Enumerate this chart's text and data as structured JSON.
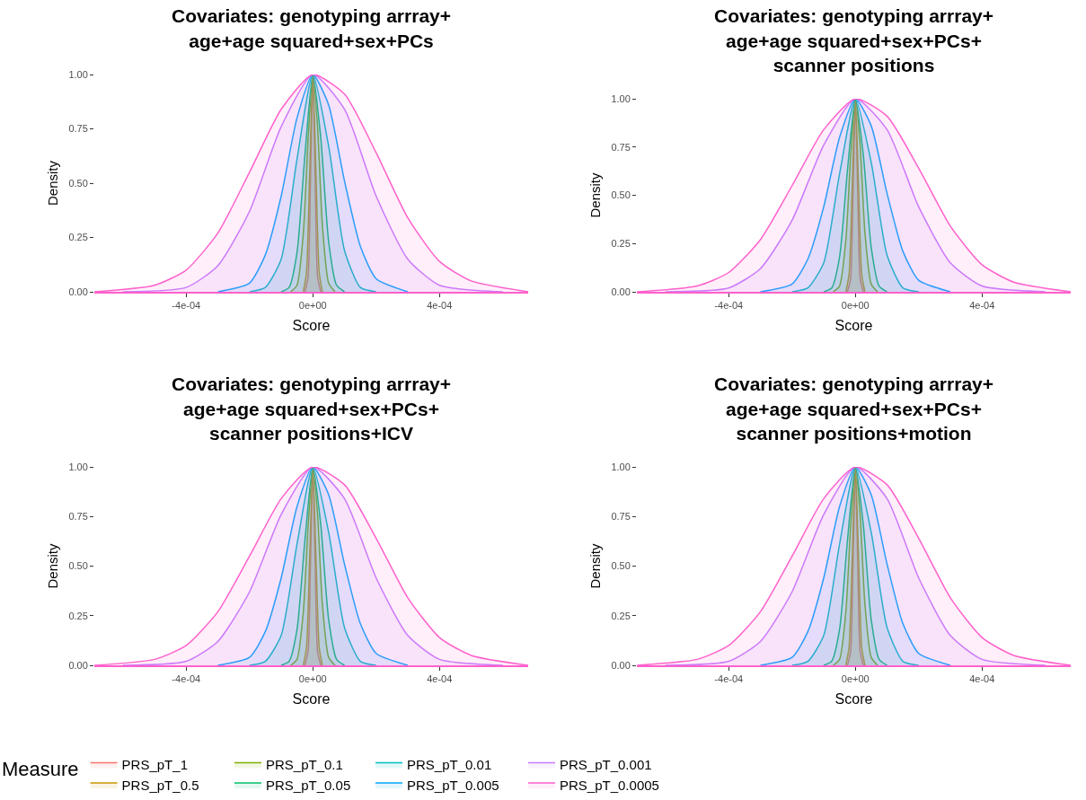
{
  "chart_data": [
    {
      "type": "area",
      "title": "Covariates: genotyping arrray+\nage+age squared+sex+PCs",
      "xlabel": "Score",
      "ylabel": "Density",
      "xlim": [
        -0.00069,
        0.00068
      ],
      "xticks": [
        {
          "value": -0.0004,
          "label": "-4e-04"
        },
        {
          "value": 0,
          "label": "0e+00"
        },
        {
          "value": 0.0004,
          "label": "4e-04"
        }
      ],
      "ylim": [
        0,
        1
      ],
      "yticks": [
        {
          "value": 0,
          "label": "0.00"
        },
        {
          "value": 0.25,
          "label": "0.25"
        },
        {
          "value": 0.5,
          "label": "0.50"
        },
        {
          "value": 0.75,
          "label": "0.75"
        },
        {
          "value": 1,
          "label": "1.00"
        }
      ],
      "series": [
        {
          "color": "#F8766D",
          "x": [
            -2.5e-05,
            -1.5e-05,
            -7.5e-06,
            0,
            7.5e-06,
            1.5e-05,
            2.5e-05
          ],
          "values": [
            0,
            0.07,
            0.51,
            1,
            0.51,
            0.07,
            0
          ]
        },
        {
          "color": "#CD9600",
          "x": [
            -3e-05,
            -2e-05,
            -1e-05,
            0,
            1e-05,
            2e-05,
            3e-05
          ],
          "values": [
            0,
            0.09,
            0.54,
            1,
            0.54,
            0.09,
            0
          ]
        },
        {
          "color": "#7CAE00",
          "x": [
            -7e-05,
            -5e-05,
            -3e-05,
            -1.5e-05,
            0,
            1.5e-05,
            3e-05,
            5e-05,
            7e-05
          ],
          "values": [
            0,
            0.03,
            0.27,
            0.7,
            1,
            0.76,
            0.31,
            0.04,
            0
          ]
        },
        {
          "color": "#00BE67",
          "x": [
            -0.0001,
            -7.5e-05,
            -5e-05,
            -2.5e-05,
            0,
            2.5e-05,
            5e-05,
            7.5e-05,
            0.0001
          ],
          "values": [
            0,
            0.02,
            0.18,
            0.63,
            1,
            0.71,
            0.23,
            0.03,
            0
          ]
        },
        {
          "color": "#00BFC4",
          "x": [
            -0.0002,
            -0.00015,
            -0.0001,
            -5e-05,
            0,
            5e-05,
            0.0001,
            0.00015,
            0.0002
          ],
          "values": [
            0,
            0.02,
            0.15,
            0.61,
            1,
            0.67,
            0.19,
            0.02,
            0
          ]
        },
        {
          "color": "#00A9FF",
          "x": [
            -0.0003,
            -0.0002,
            -0.00015,
            -0.0001,
            -5e-05,
            0,
            5e-05,
            0.0001,
            0.00015,
            0.0002,
            0.0003
          ],
          "values": [
            0,
            0.04,
            0.17,
            0.44,
            0.8,
            1,
            0.86,
            0.51,
            0.21,
            0.06,
            0
          ]
        },
        {
          "color": "#C77CFF",
          "x": [
            -0.0006,
            -0.0004,
            -0.0003,
            -0.0002,
            -0.0001,
            0,
            0.0001,
            0.0002,
            0.0003,
            0.0004,
            0.0006
          ],
          "values": [
            0,
            0.02,
            0.12,
            0.37,
            0.76,
            1,
            0.84,
            0.44,
            0.15,
            0.03,
            0
          ]
        },
        {
          "color": "#FF61CC",
          "x": [
            -0.00069,
            -0.0005,
            -0.0004,
            -0.0003,
            -0.0002,
            -0.0001,
            0,
            0.0001,
            0.0002,
            0.0003,
            0.0004,
            0.0005,
            0.00068
          ],
          "values": [
            0,
            0.03,
            0.1,
            0.27,
            0.55,
            0.84,
            1,
            0.91,
            0.64,
            0.34,
            0.14,
            0.05,
            0
          ]
        }
      ]
    },
    {
      "type": "area",
      "title": "Covariates: genotyping arrray+\nage+age squared+sex+PCs+\nscanner positions",
      "xlabel": "Score",
      "ylabel": "Density",
      "xlim": [
        -0.00069,
        0.00068
      ],
      "xticks": [
        {
          "value": -0.0004,
          "label": "-4e-04"
        },
        {
          "value": 0,
          "label": "0e+00"
        },
        {
          "value": 0.0004,
          "label": "4e-04"
        }
      ],
      "ylim": [
        0,
        1
      ],
      "yticks": [
        {
          "value": 0,
          "label": "0.00"
        },
        {
          "value": 0.25,
          "label": "0.25"
        },
        {
          "value": 0.5,
          "label": "0.50"
        },
        {
          "value": 0.75,
          "label": "0.75"
        },
        {
          "value": 1,
          "label": "1.00"
        }
      ],
      "series": [
        {
          "color": "#F8766D",
          "x": [
            -2.5e-05,
            -1.5e-05,
            -7.5e-06,
            0,
            7.5e-06,
            1.5e-05,
            2.5e-05
          ],
          "values": [
            0,
            0.07,
            0.51,
            1,
            0.51,
            0.07,
            0
          ]
        },
        {
          "color": "#CD9600",
          "x": [
            -3e-05,
            -2e-05,
            -1e-05,
            0,
            1e-05,
            2e-05,
            3e-05
          ],
          "values": [
            0,
            0.09,
            0.54,
            1,
            0.54,
            0.09,
            0
          ]
        },
        {
          "color": "#7CAE00",
          "x": [
            -7e-05,
            -5e-05,
            -3e-05,
            -1.5e-05,
            0,
            1.5e-05,
            3e-05,
            5e-05,
            7e-05
          ],
          "values": [
            0,
            0.03,
            0.27,
            0.7,
            1,
            0.76,
            0.31,
            0.04,
            0
          ]
        },
        {
          "color": "#00BE67",
          "x": [
            -0.0001,
            -7.5e-05,
            -5e-05,
            -2.5e-05,
            0,
            2.5e-05,
            5e-05,
            7.5e-05,
            0.0001
          ],
          "values": [
            0,
            0.02,
            0.18,
            0.63,
            1,
            0.71,
            0.23,
            0.03,
            0
          ]
        },
        {
          "color": "#00BFC4",
          "x": [
            -0.0002,
            -0.00015,
            -0.0001,
            -5e-05,
            0,
            5e-05,
            0.0001,
            0.00015,
            0.0002
          ],
          "values": [
            0,
            0.02,
            0.15,
            0.61,
            1,
            0.67,
            0.19,
            0.02,
            0
          ]
        },
        {
          "color": "#00A9FF",
          "x": [
            -0.0003,
            -0.0002,
            -0.00015,
            -0.0001,
            -5e-05,
            0,
            5e-05,
            0.0001,
            0.00015,
            0.0002,
            0.0003
          ],
          "values": [
            0,
            0.04,
            0.17,
            0.44,
            0.8,
            1,
            0.86,
            0.51,
            0.21,
            0.06,
            0
          ]
        },
        {
          "color": "#C77CFF",
          "x": [
            -0.0006,
            -0.0004,
            -0.0003,
            -0.0002,
            -0.0001,
            0,
            0.0001,
            0.0002,
            0.0003,
            0.0004,
            0.0006
          ],
          "values": [
            0,
            0.02,
            0.12,
            0.37,
            0.76,
            1,
            0.84,
            0.44,
            0.15,
            0.03,
            0
          ]
        },
        {
          "color": "#FF61CC",
          "x": [
            -0.00069,
            -0.0005,
            -0.0004,
            -0.0003,
            -0.0002,
            -0.0001,
            0,
            0.0001,
            0.0002,
            0.0003,
            0.0004,
            0.0005,
            0.00068
          ],
          "values": [
            0,
            0.03,
            0.1,
            0.27,
            0.55,
            0.84,
            1,
            0.91,
            0.64,
            0.34,
            0.14,
            0.05,
            0
          ]
        }
      ]
    },
    {
      "type": "area",
      "title": "Covariates: genotyping arrray+\nage+age squared+sex+PCs+\nscanner positions+ICV",
      "xlabel": "Score",
      "ylabel": "Density",
      "legend": "bottom",
      "legend_title": "Measure",
      "xlim": [
        -0.00069,
        0.00068
      ],
      "xticks": [
        {
          "value": -0.0004,
          "label": "-4e-04"
        },
        {
          "value": 0,
          "label": "0e+00"
        },
        {
          "value": 0.0004,
          "label": "4e-04"
        }
      ],
      "ylim": [
        0,
        1
      ],
      "yticks": [
        {
          "value": 0,
          "label": "0.00"
        },
        {
          "value": 0.25,
          "label": "0.25"
        },
        {
          "value": 0.5,
          "label": "0.50"
        },
        {
          "value": 0.75,
          "label": "0.75"
        },
        {
          "value": 1,
          "label": "1.00"
        }
      ],
      "series": [
        {
          "name": "PRS_pT_1",
          "color": "#F8766D",
          "x": [
            -2.5e-05,
            -1.5e-05,
            -7.5e-06,
            0,
            7.5e-06,
            1.5e-05,
            2.5e-05
          ],
          "values": [
            0,
            0.07,
            0.51,
            1,
            0.51,
            0.07,
            0
          ]
        },
        {
          "name": "PRS_pT_0.5",
          "color": "#CD9600",
          "x": [
            -3e-05,
            -2e-05,
            -1e-05,
            0,
            1e-05,
            2e-05,
            3e-05
          ],
          "values": [
            0,
            0.09,
            0.54,
            1,
            0.54,
            0.09,
            0
          ]
        },
        {
          "name": "PRS_pT_0.1",
          "color": "#7CAE00",
          "x": [
            -7e-05,
            -5e-05,
            -3e-05,
            -1.5e-05,
            0,
            1.5e-05,
            3e-05,
            5e-05,
            7e-05
          ],
          "values": [
            0,
            0.03,
            0.27,
            0.7,
            1,
            0.76,
            0.31,
            0.04,
            0
          ]
        },
        {
          "name": "PRS_pT_0.05",
          "color": "#00BE67",
          "x": [
            -0.0001,
            -7.5e-05,
            -5e-05,
            -2.5e-05,
            0,
            2.5e-05,
            5e-05,
            7.5e-05,
            0.0001
          ],
          "values": [
            0,
            0.02,
            0.18,
            0.63,
            1,
            0.71,
            0.23,
            0.03,
            0
          ]
        },
        {
          "name": "PRS_pT_0.01",
          "color": "#00BFC4",
          "x": [
            -0.0002,
            -0.00015,
            -0.0001,
            -5e-05,
            0,
            5e-05,
            0.0001,
            0.00015,
            0.0002
          ],
          "values": [
            0,
            0.02,
            0.15,
            0.61,
            1,
            0.67,
            0.19,
            0.02,
            0
          ]
        },
        {
          "name": "PRS_pT_0.005",
          "color": "#00A9FF",
          "x": [
            -0.0003,
            -0.0002,
            -0.00015,
            -0.0001,
            -5e-05,
            0,
            5e-05,
            0.0001,
            0.00015,
            0.0002,
            0.0003
          ],
          "values": [
            0,
            0.04,
            0.17,
            0.44,
            0.8,
            1,
            0.86,
            0.51,
            0.21,
            0.06,
            0
          ]
        },
        {
          "name": "PRS_pT_0.001",
          "color": "#C77CFF",
          "x": [
            -0.0006,
            -0.0004,
            -0.0003,
            -0.0002,
            -0.0001,
            0,
            0.0001,
            0.0002,
            0.0003,
            0.0004,
            0.0006
          ],
          "values": [
            0,
            0.02,
            0.12,
            0.37,
            0.76,
            1,
            0.84,
            0.44,
            0.15,
            0.03,
            0
          ]
        },
        {
          "name": "PRS_pT_0.0005",
          "color": "#FF61CC",
          "x": [
            -0.00069,
            -0.0005,
            -0.0004,
            -0.0003,
            -0.0002,
            -0.0001,
            0,
            0.0001,
            0.0002,
            0.0003,
            0.0004,
            0.0005,
            0.00068
          ],
          "values": [
            0,
            0.03,
            0.1,
            0.27,
            0.55,
            0.84,
            1,
            0.91,
            0.64,
            0.34,
            0.14,
            0.05,
            0
          ]
        }
      ]
    },
    {
      "type": "area",
      "title": "Covariates: genotyping arrray+\nage+age squared+sex+PCs+\nscanner positions+motion",
      "xlabel": "Score",
      "ylabel": "Density",
      "xlim": [
        -0.00069,
        0.00068
      ],
      "xticks": [
        {
          "value": -0.0004,
          "label": "-4e-04"
        },
        {
          "value": 0,
          "label": "0e+00"
        },
        {
          "value": 0.0004,
          "label": "4e-04"
        }
      ],
      "ylim": [
        0,
        1
      ],
      "yticks": [
        {
          "value": 0,
          "label": "0.00"
        },
        {
          "value": 0.25,
          "label": "0.25"
        },
        {
          "value": 0.5,
          "label": "0.50"
        },
        {
          "value": 0.75,
          "label": "0.75"
        },
        {
          "value": 1,
          "label": "1.00"
        }
      ],
      "series": [
        {
          "color": "#F8766D",
          "x": [
            -2.5e-05,
            -1.5e-05,
            -7.5e-06,
            0,
            7.5e-06,
            1.5e-05,
            2.5e-05
          ],
          "values": [
            0,
            0.07,
            0.51,
            1,
            0.51,
            0.07,
            0
          ]
        },
        {
          "color": "#CD9600",
          "x": [
            -3e-05,
            -2e-05,
            -1e-05,
            0,
            1e-05,
            2e-05,
            3e-05
          ],
          "values": [
            0,
            0.09,
            0.54,
            1,
            0.54,
            0.09,
            0
          ]
        },
        {
          "color": "#7CAE00",
          "x": [
            -7e-05,
            -5e-05,
            -3e-05,
            -1.5e-05,
            0,
            1.5e-05,
            3e-05,
            5e-05,
            7e-05
          ],
          "values": [
            0,
            0.03,
            0.27,
            0.7,
            1,
            0.76,
            0.31,
            0.04,
            0
          ]
        },
        {
          "color": "#00BE67",
          "x": [
            -0.0001,
            -7.5e-05,
            -5e-05,
            -2.5e-05,
            0,
            2.5e-05,
            5e-05,
            7.5e-05,
            0.0001
          ],
          "values": [
            0,
            0.02,
            0.18,
            0.63,
            1,
            0.71,
            0.23,
            0.03,
            0
          ]
        },
        {
          "color": "#00BFC4",
          "x": [
            -0.0002,
            -0.00015,
            -0.0001,
            -5e-05,
            0,
            5e-05,
            0.0001,
            0.00015,
            0.0002
          ],
          "values": [
            0,
            0.02,
            0.15,
            0.61,
            1,
            0.67,
            0.19,
            0.02,
            0
          ]
        },
        {
          "color": "#00A9FF",
          "x": [
            -0.0003,
            -0.0002,
            -0.00015,
            -0.0001,
            -5e-05,
            0,
            5e-05,
            0.0001,
            0.00015,
            0.0002,
            0.0003
          ],
          "values": [
            0,
            0.04,
            0.17,
            0.44,
            0.8,
            1,
            0.86,
            0.51,
            0.21,
            0.06,
            0
          ]
        },
        {
          "color": "#C77CFF",
          "x": [
            -0.0006,
            -0.0004,
            -0.0003,
            -0.0002,
            -0.0001,
            0,
            0.0001,
            0.0002,
            0.0003,
            0.0004,
            0.0006
          ],
          "values": [
            0,
            0.02,
            0.12,
            0.37,
            0.76,
            1,
            0.84,
            0.44,
            0.15,
            0.03,
            0
          ]
        },
        {
          "color": "#FF61CC",
          "x": [
            -0.00069,
            -0.0005,
            -0.0004,
            -0.0003,
            -0.0002,
            -0.0001,
            0,
            0.0001,
            0.0002,
            0.0003,
            0.0004,
            0.0005,
            0.00068
          ],
          "values": [
            0,
            0.03,
            0.1,
            0.27,
            0.55,
            0.84,
            1,
            0.91,
            0.64,
            0.34,
            0.14,
            0.05,
            0
          ]
        }
      ]
    }
  ]
}
